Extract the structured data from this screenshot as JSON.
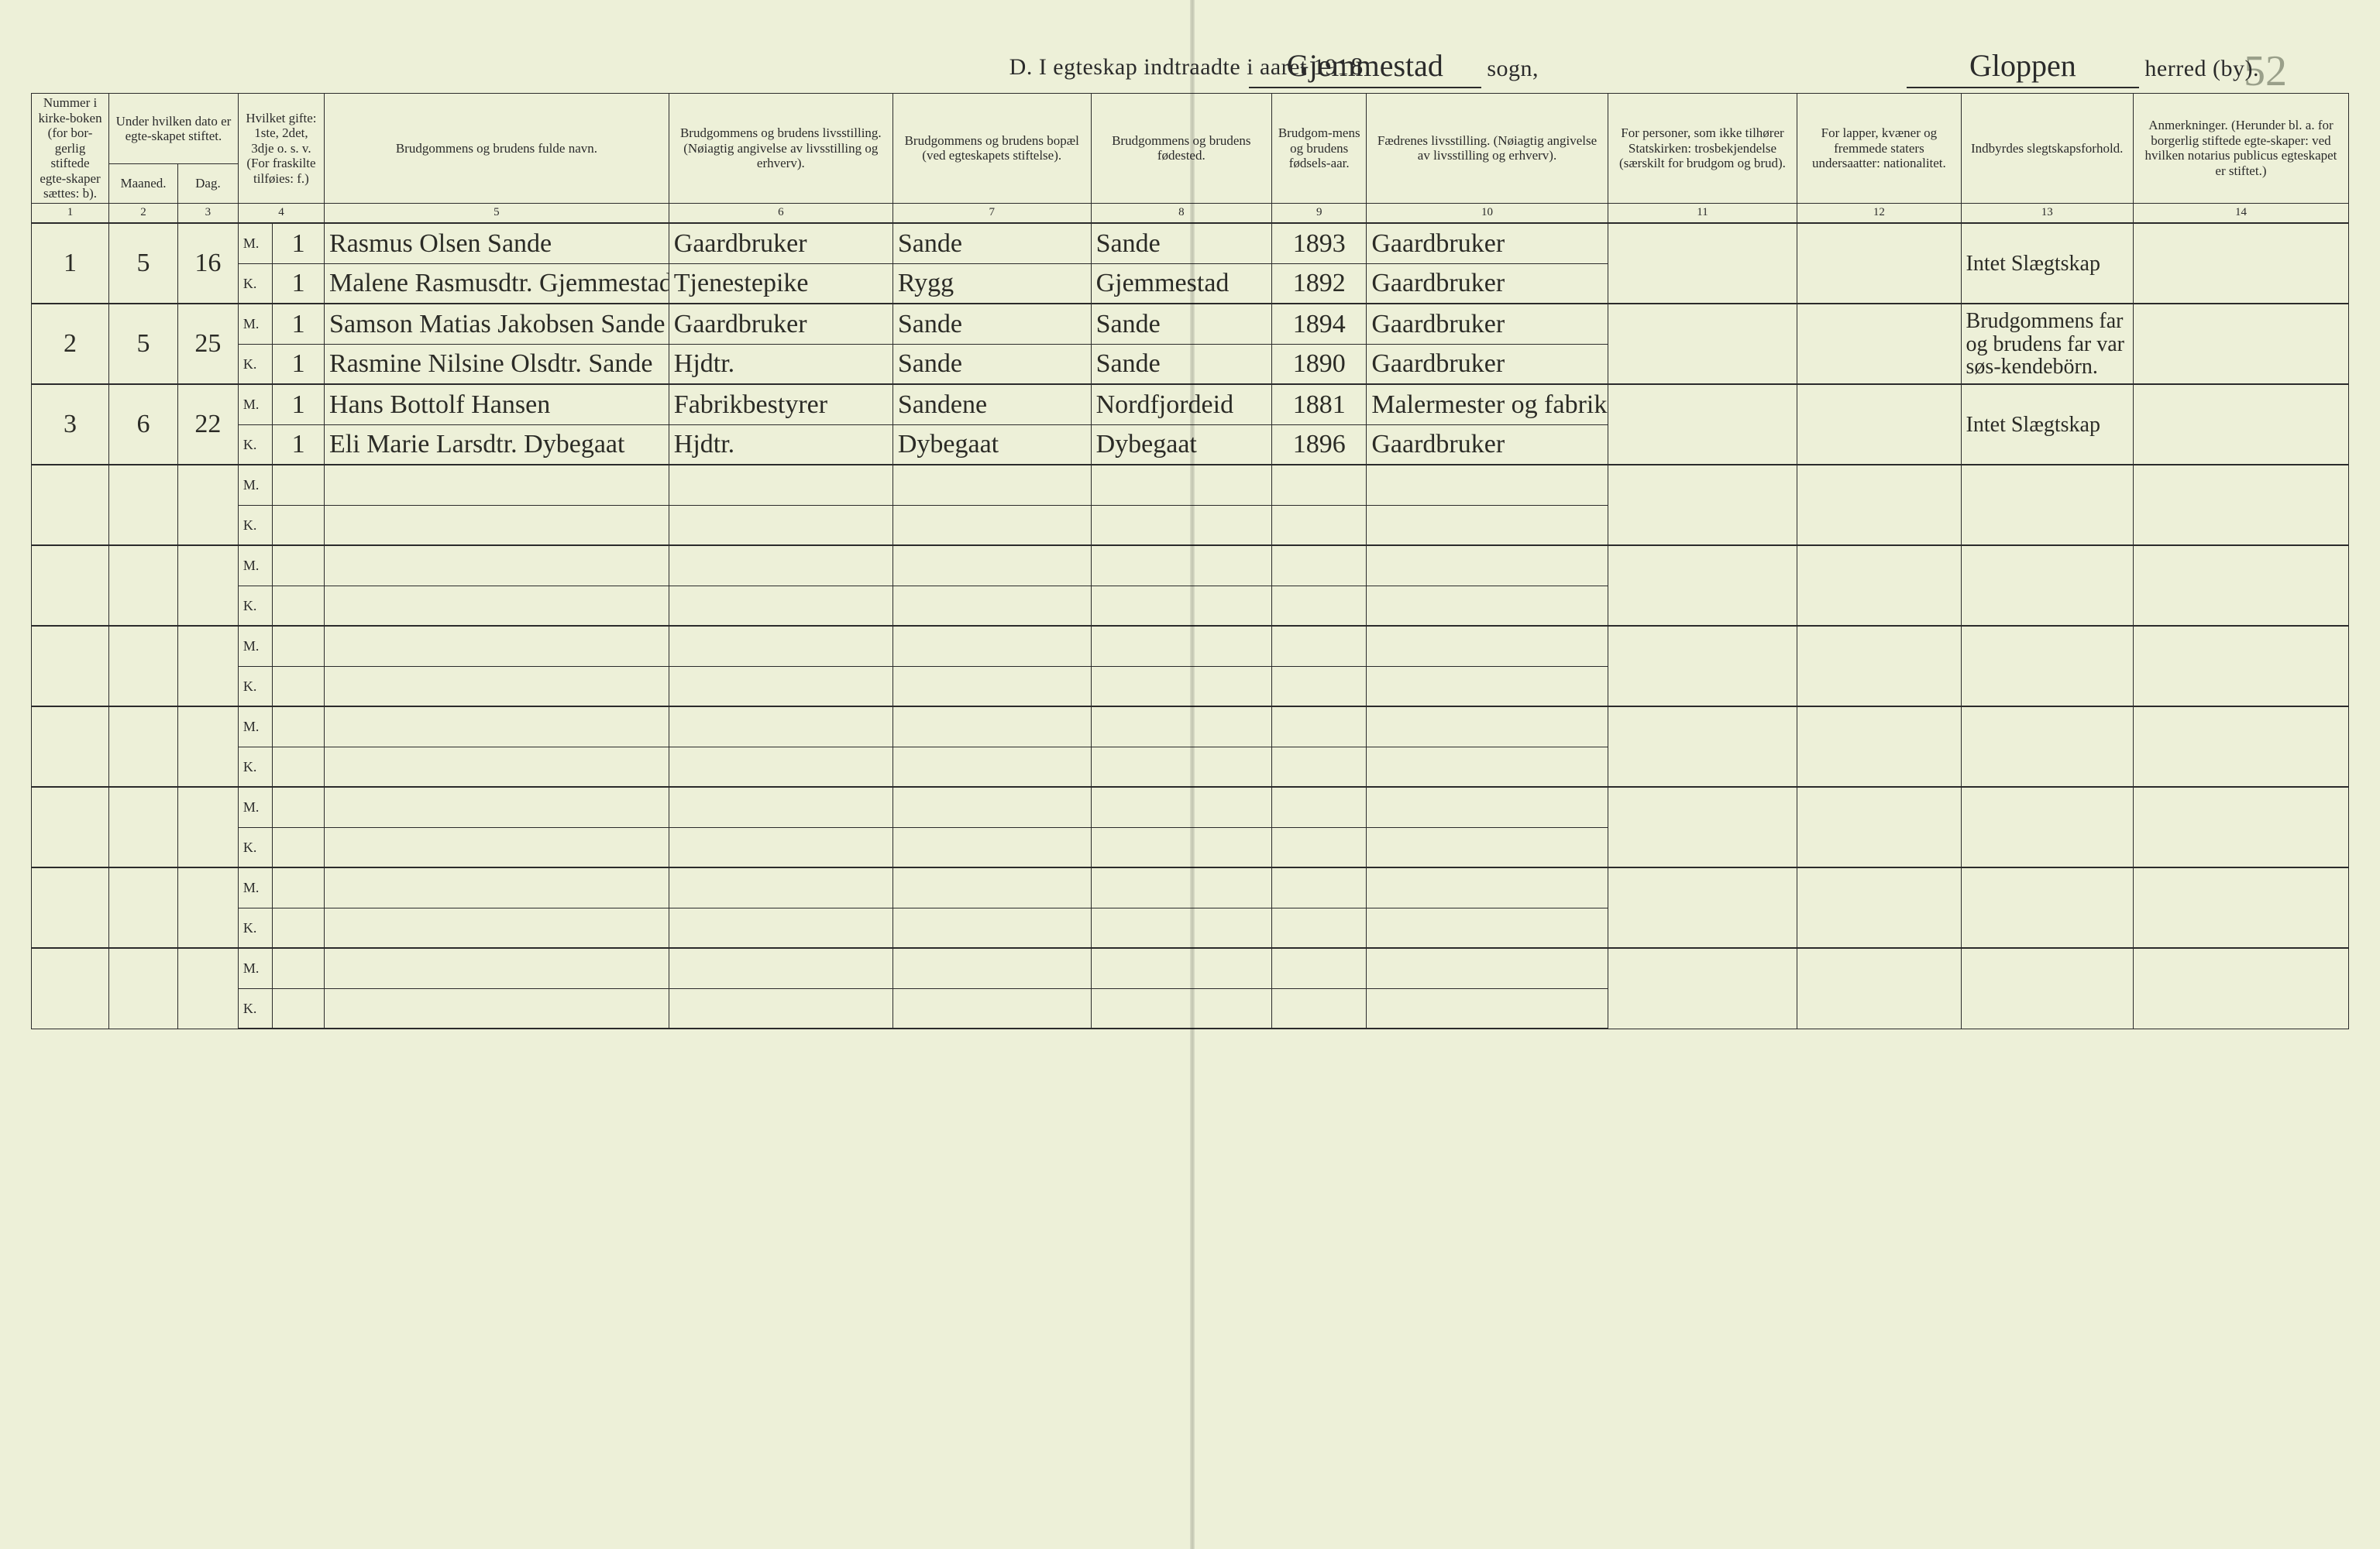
{
  "page_number_handwritten": "52",
  "title": {
    "prefix": "D.  I egteskap indtraadte i aaret 191",
    "year_last_digit": "8",
    "sogn_value": "Gjemmestad",
    "sogn_label": "sogn,",
    "herred_value": "Gloppen",
    "herred_label": "herred (by)."
  },
  "columns": {
    "c1": "Nummer i kirke-boken (for bor-gerlig stiftede egte-skaper sættes: b).",
    "c2_top": "Under hvilken dato er egte-skapet stiftet.",
    "c2a": "Maaned.",
    "c2b": "Dag.",
    "c4": "Hvilket gifte: 1ste, 2det, 3dje o. s. v. (For fraskilte tilføies: f.)",
    "c5": "Brudgommens og brudens fulde navn.",
    "c6": "Brudgommens og brudens livsstilling. (Nøiagtig angivelse av livsstilling og erhverv).",
    "c7": "Brudgommens og brudens bopæl (ved egteskapets stiftelse).",
    "c8": "Brudgommens og brudens fødested.",
    "c9": "Brudgom-mens og brudens fødsels-aar.",
    "c10": "Fædrenes livsstilling. (Nøiagtig angivelse av livsstilling og erhverv).",
    "c11": "For personer, som ikke tilhører Statskirken: trosbekjendelse (særskilt for brudgom og brud).",
    "c12": "For lapper, kvæner og fremmede staters undersaatter: nationalitet.",
    "c13": "Indbyrdes slegtskapsforhold.",
    "c14": "Anmerkninger. (Herunder bl. a. for borgerlig stiftede egte-skaper: ved hvilken notarius publicus egteskapet er stiftet.)"
  },
  "colnums": [
    "1",
    "2",
    "3",
    "4",
    "5",
    "6",
    "7",
    "8",
    "9",
    "10",
    "11",
    "12",
    "13",
    "14"
  ],
  "mk": {
    "m": "M.",
    "k": "K."
  },
  "entries": [
    {
      "num": "1",
      "month": "5",
      "day": "16",
      "groom": {
        "gifte": "1",
        "name": "Rasmus Olsen Sande",
        "occ": "Gaardbruker",
        "res": "Sande",
        "birthpl": "Sande",
        "year": "1893",
        "father": "Gaardbruker"
      },
      "bride": {
        "gifte": "1",
        "name": "Malene Rasmusdtr. Gjemmestad",
        "occ": "Tjenestepike",
        "res": "Rygg",
        "birthpl": "Gjemmestad",
        "year": "1892",
        "father": "Gaardbruker"
      },
      "kinship": "Intet Slægtskap"
    },
    {
      "num": "2",
      "month": "5",
      "day": "25",
      "groom": {
        "gifte": "1",
        "name": "Samson Matias Jakobsen Sande",
        "occ": "Gaardbruker",
        "res": "Sande",
        "birthpl": "Sande",
        "year": "1894",
        "father": "Gaardbruker"
      },
      "bride": {
        "gifte": "1",
        "name": "Rasmine Nilsine Olsdtr. Sande",
        "occ": "Hjdtr.",
        "res": "Sande",
        "birthpl": "Sande",
        "year": "1890",
        "father": "Gaardbruker"
      },
      "kinship": "Brudgommens far og brudens far var søs-kendebörn."
    },
    {
      "num": "3",
      "month": "6",
      "day": "22",
      "groom": {
        "gifte": "1",
        "name": "Hans Bottolf Hansen",
        "occ": "Fabrikbestyrer",
        "res": "Sandene",
        "birthpl": "Nordfjordeid",
        "year": "1881",
        "father": "Malermester og fabrikeier"
      },
      "bride": {
        "gifte": "1",
        "name": "Eli Marie Larsdtr. Dybegaat",
        "occ": "Hjdtr.",
        "res": "Dybegaat",
        "birthpl": "Dybegaat",
        "year": "1896",
        "father": "Gaardbruker"
      },
      "kinship": "Intet Slægtskap"
    }
  ],
  "blank_pairs": 7,
  "style": {
    "paper": "#edf0d8",
    "ink": "#2b2b2b",
    "hand": "#2b2b26",
    "rule_thin": 1,
    "rule_thick": 2,
    "header_fontsize_pt": 13,
    "hand_fontsize_pt": 26
  }
}
